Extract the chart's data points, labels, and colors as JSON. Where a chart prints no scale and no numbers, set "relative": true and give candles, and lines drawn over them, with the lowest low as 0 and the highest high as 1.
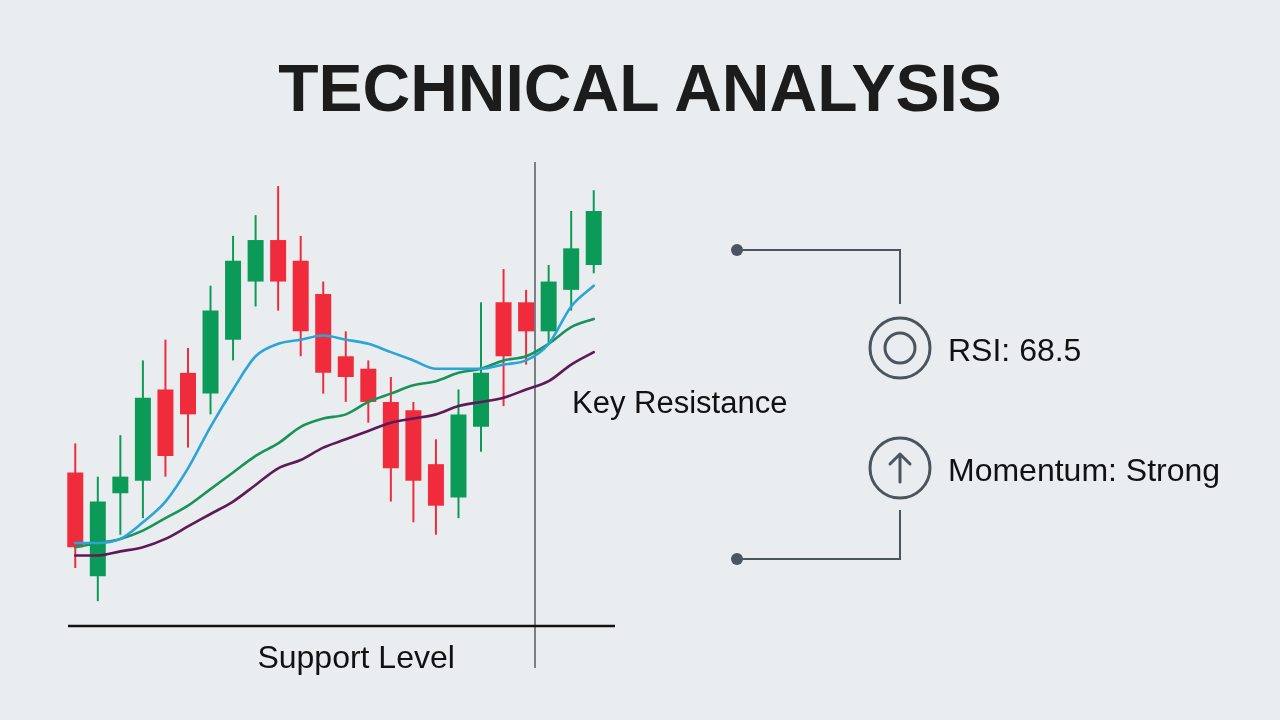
{
  "chart_data": {
    "type": "candlestick",
    "title": "TECHNICAL ANALYSIS",
    "relative": true,
    "categories": [
      null,
      null,
      null,
      null,
      null,
      null,
      null,
      null,
      null,
      null,
      null,
      null,
      null,
      null,
      null,
      null,
      null,
      null,
      null,
      null,
      null,
      null,
      null,
      null
    ],
    "ohlc": [
      [
        0.31,
        0.38,
        0.08,
        0.13
      ],
      [
        0.06,
        0.3,
        0,
        0.24
      ],
      [
        0.26,
        0.4,
        0.16,
        0.3
      ],
      [
        0.29,
        0.58,
        0.2,
        0.49
      ],
      [
        0.51,
        0.63,
        0.3,
        0.35
      ],
      [
        0.55,
        0.61,
        0.37,
        0.45
      ],
      [
        0.5,
        0.76,
        0.45,
        0.7
      ],
      [
        0.63,
        0.88,
        0.58,
        0.82
      ],
      [
        0.77,
        0.93,
        0.71,
        0.87
      ],
      [
        0.87,
        1,
        0.7,
        0.77
      ],
      [
        0.82,
        0.88,
        0.59,
        0.65
      ],
      [
        0.74,
        0.77,
        0.5,
        0.55
      ],
      [
        0.59,
        0.65,
        0.48,
        0.54
      ],
      [
        0.56,
        0.58,
        0.43,
        0.48
      ],
      [
        0.48,
        0.54,
        0.24,
        0.32
      ],
      [
        0.46,
        0.48,
        0.19,
        0.29
      ],
      [
        0.33,
        0.39,
        0.16,
        0.23
      ],
      [
        0.25,
        0.51,
        0.2,
        0.45
      ],
      [
        0.42,
        0.72,
        0.36,
        0.55
      ],
      [
        0.72,
        0.8,
        0.47,
        0.59
      ],
      [
        0.72,
        0.75,
        0.57,
        0.65
      ],
      [
        0.65,
        0.81,
        0.62,
        0.77
      ],
      [
        0.75,
        0.94,
        0.7,
        0.85
      ],
      [
        0.81,
        0.99,
        0.79,
        0.94
      ]
    ],
    "colors": [
      "#ef2b3c",
      "#0c9a58",
      "#0c9a58",
      "#0c9a58",
      "#ef2b3c",
      "#ef2b3c",
      "#0c9a58",
      "#0c9a58",
      "#0c9a58",
      "#ef2b3c",
      "#ef2b3c",
      "#ef2b3c",
      "#ef2b3c",
      "#ef2b3c",
      "#ef2b3c",
      "#ef2b3c",
      "#ef2b3c",
      "#0c9a58",
      "#0c9a58",
      "#ef2b3c",
      "#ef2b3c",
      "#0c9a58",
      "#0c9a58",
      "#0c9a58"
    ],
    "series": [
      {
        "type": "line",
        "color": "#2ba5d8",
        "values": [
          0.14,
          0.14,
          0.15,
          0.19,
          0.24,
          0.32,
          0.42,
          0.51,
          0.59,
          0.62,
          0.63,
          0.64,
          0.63,
          0.62,
          0.6,
          0.58,
          0.56,
          0.56,
          0.56,
          0.57,
          0.58,
          0.62,
          0.71,
          0.76
        ]
      },
      {
        "type": "line",
        "color": "#18935a",
        "values": [
          0.13,
          0.14,
          0.15,
          0.17,
          0.2,
          0.23,
          0.27,
          0.31,
          0.35,
          0.38,
          0.42,
          0.44,
          0.45,
          0.48,
          0.5,
          0.52,
          0.53,
          0.55,
          0.56,
          0.58,
          0.59,
          0.62,
          0.66,
          0.68
        ]
      },
      {
        "type": "line",
        "color": "#5e1a58",
        "values": [
          0.11,
          0.11,
          0.12,
          0.13,
          0.15,
          0.18,
          0.21,
          0.24,
          0.28,
          0.32,
          0.34,
          0.37,
          0.39,
          0.41,
          0.43,
          0.44,
          0.45,
          0.47,
          0.48,
          0.49,
          0.51,
          0.53,
          0.57,
          0.6
        ]
      }
    ],
    "marker": "none",
    "ref_lines": [
      {
        "axis": "y",
        "value": -0.06,
        "label": "Support Level",
        "color": "#111111"
      }
    ],
    "annotations": [
      "Key Resistance",
      "RSI: 68.5",
      "Momentum: Strong"
    ]
  }
}
